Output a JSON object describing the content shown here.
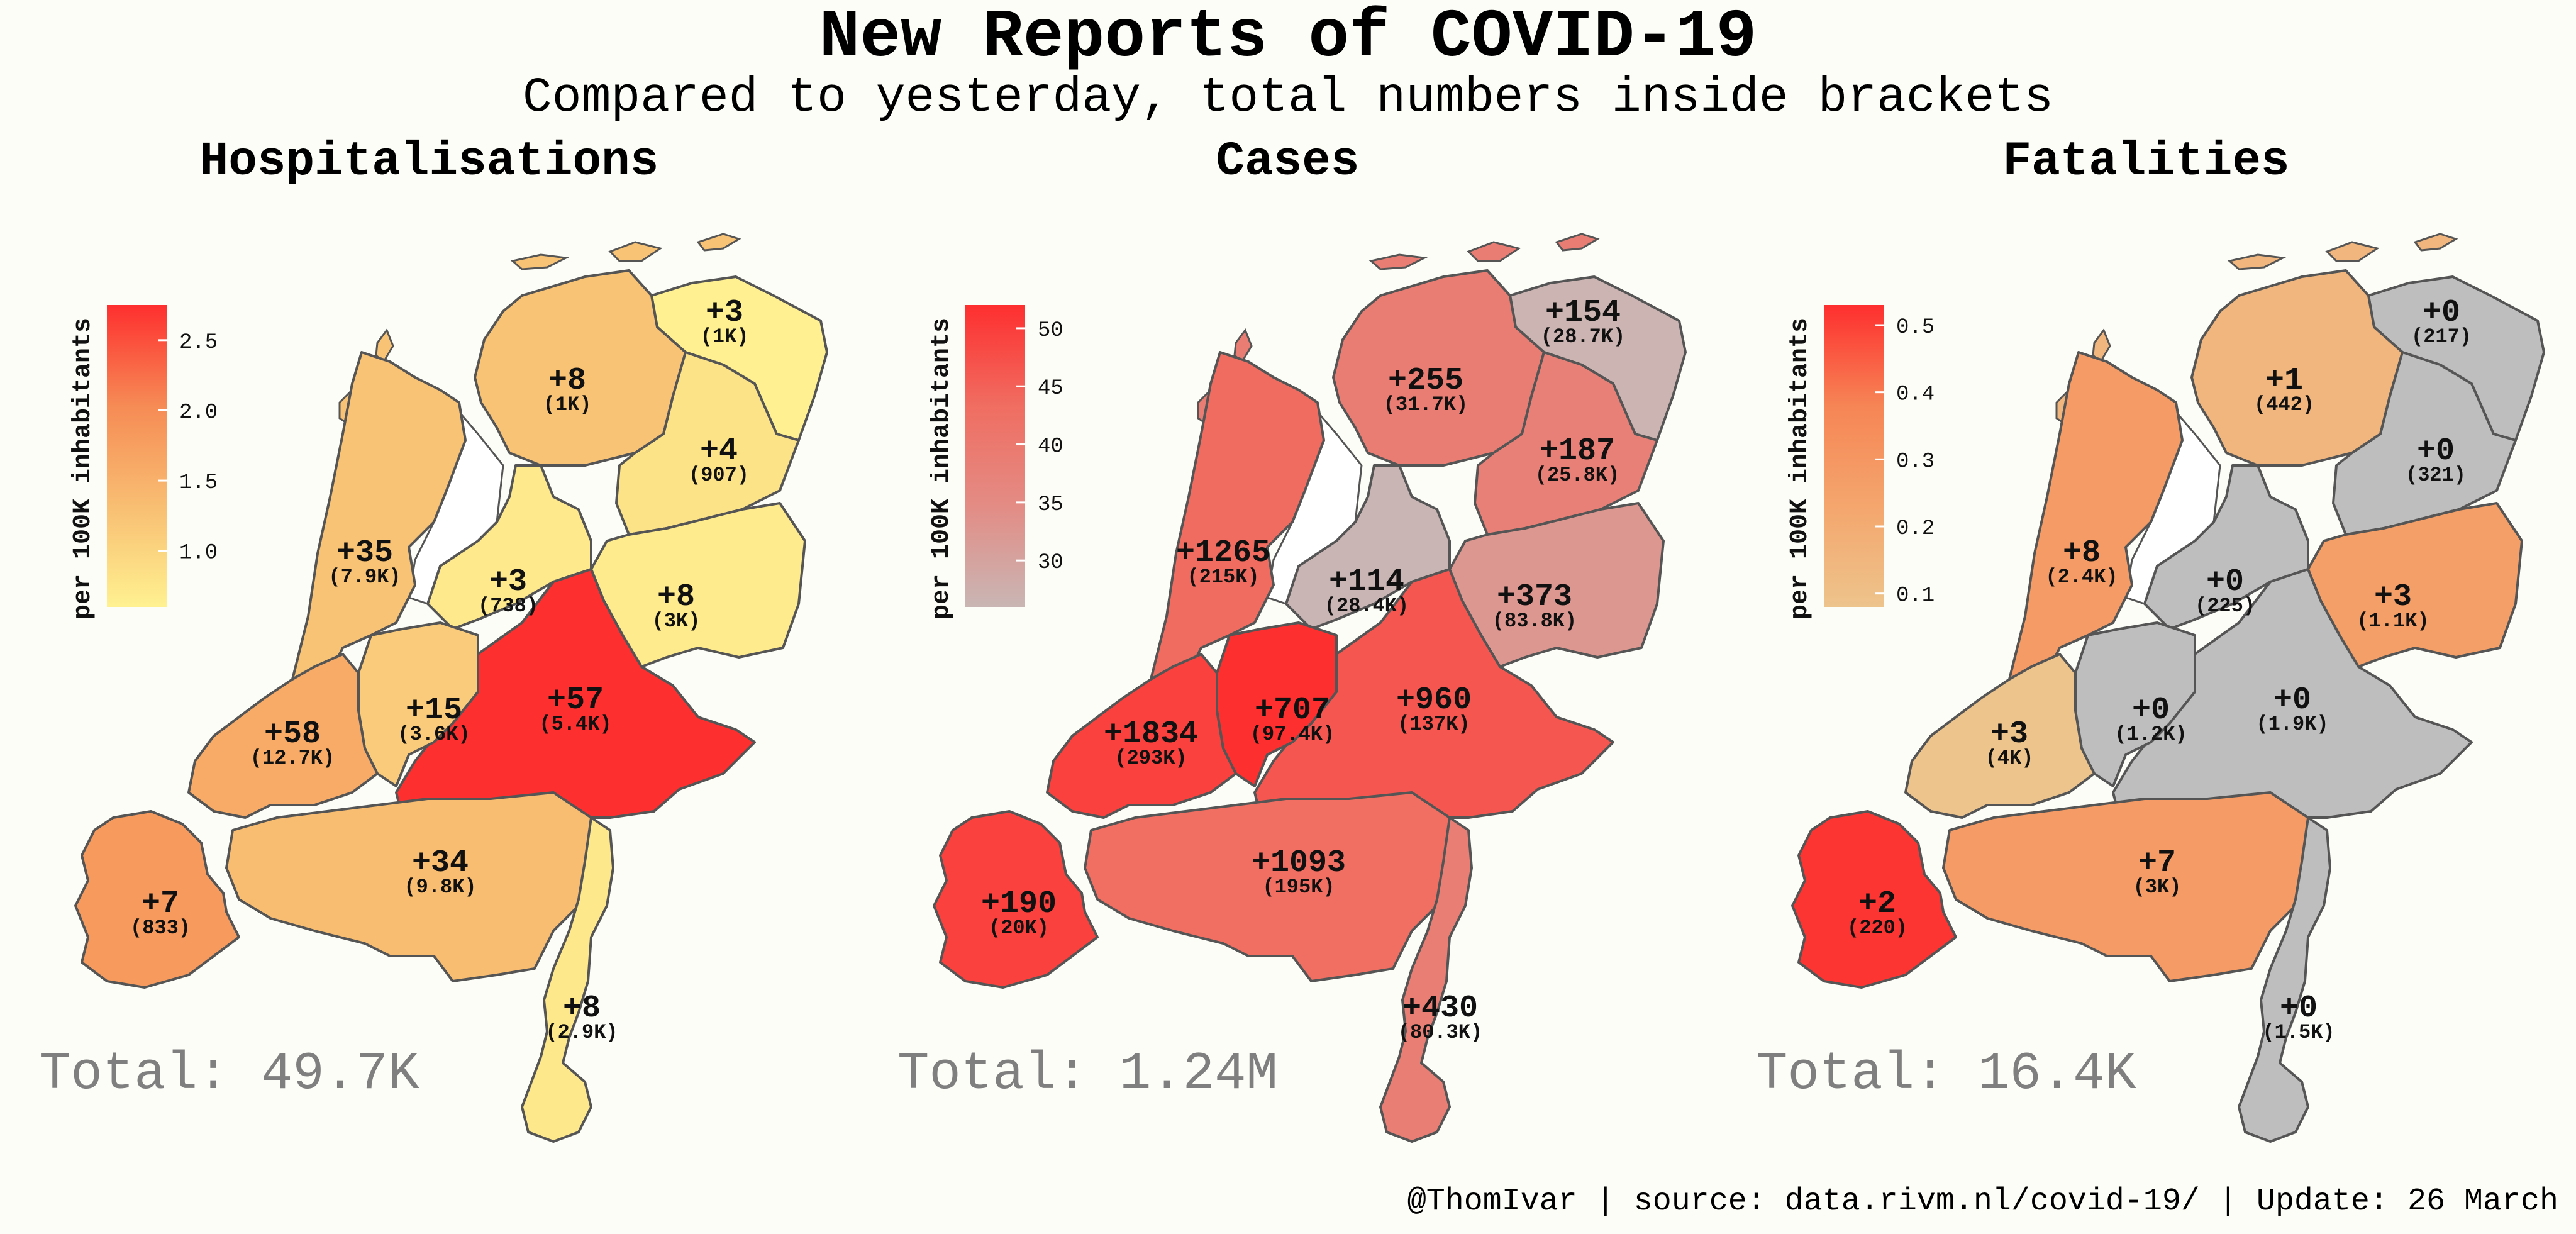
{
  "title": "New Reports of COVID-19",
  "subtitle": "Compared to yesterday, total numbers inside brackets",
  "footer": "@ThomIvar | source: data.rivm.nl/covid-19/ | Update: 26 March",
  "chart_data": [
    {
      "type": "choropleth",
      "title": "Hospitalisations",
      "legend_label": "per 100K inhabitants",
      "legend_ticks": [
        "2.5",
        "2.0",
        "1.5",
        "1.0"
      ],
      "legend_range": [
        0.6,
        2.75
      ],
      "legend_colors": [
        "#fff191",
        "#f8be72",
        "#f68b55",
        "#fe2f2f"
      ],
      "total": "Total: 49.7K",
      "regions": [
        {
          "name": "Groningen",
          "delta": "+3",
          "total": "(1K)",
          "value": 0.51
        },
        {
          "name": "Friesland",
          "delta": "+8",
          "total": "(1K)",
          "value": 1.24
        },
        {
          "name": "Drenthe",
          "delta": "+4",
          "total": "(907)",
          "value": 0.8
        },
        {
          "name": "Noord-Holland",
          "delta": "+35",
          "total": "(7.9K)",
          "value": 1.25
        },
        {
          "name": "Flevoland",
          "delta": "+3",
          "total": "(738)",
          "value": 0.71
        },
        {
          "name": "Overijssel",
          "delta": "+8",
          "total": "(3K)",
          "value": 0.69
        },
        {
          "name": "Gelderland",
          "delta": "+57",
          "total": "(5.4K)",
          "value": 2.75
        },
        {
          "name": "Utrecht",
          "delta": "+15",
          "total": "(3.6K)",
          "value": 1.13
        },
        {
          "name": "Zuid-Holland",
          "delta": "+58",
          "total": "(12.7K)",
          "value": 1.58
        },
        {
          "name": "Zeeland",
          "delta": "+7",
          "total": "(833)",
          "value": 1.82
        },
        {
          "name": "Noord-Brabant",
          "delta": "+34",
          "total": "(9.8K)",
          "value": 1.33
        },
        {
          "name": "Limburg",
          "delta": "+8",
          "total": "(2.9K)",
          "value": 0.72
        }
      ]
    },
    {
      "type": "choropleth",
      "title": "Cases",
      "legend_label": "per 100K inhabitants",
      "legend_ticks": [
        "50",
        "45",
        "40",
        "35",
        "30"
      ],
      "legend_range": [
        26,
        52
      ],
      "legend_colors": [
        "#c9b6b4",
        "#e38c85",
        "#f06d61",
        "#fe2f2f"
      ],
      "total": "Total: 1.24M",
      "regions": [
        {
          "name": "Groningen",
          "delta": "+154",
          "total": "(28.7K)",
          "value": 26.5
        },
        {
          "name": "Friesland",
          "delta": "+255",
          "total": "(31.7K)",
          "value": 39.0
        },
        {
          "name": "Drenthe",
          "delta": "+187",
          "total": "(25.8K)",
          "value": 38.0
        },
        {
          "name": "Noord-Holland",
          "delta": "+1265",
          "total": "(215K)",
          "value": 43.5
        },
        {
          "name": "Flevoland",
          "delta": "+114",
          "total": "(28.4K)",
          "value": 26.0
        },
        {
          "name": "Overijssel",
          "delta": "+373",
          "total": "(83.8K)",
          "value": 32.5
        },
        {
          "name": "Gelderland",
          "delta": "+960",
          "total": "(137K)",
          "value": 46.5
        },
        {
          "name": "Utrecht",
          "delta": "+707",
          "total": "(97.4K)",
          "value": 52.0
        },
        {
          "name": "Zuid-Holland",
          "delta": "+1834",
          "total": "(293K)",
          "value": 49.5
        },
        {
          "name": "Zeeland",
          "delta": "+190",
          "total": "(20K)",
          "value": 49.5
        },
        {
          "name": "Noord-Brabant",
          "delta": "+1093",
          "total": "(195K)",
          "value": 43.0
        },
        {
          "name": "Limburg",
          "delta": "+430",
          "total": "(80.3K)",
          "value": 38.5
        }
      ]
    },
    {
      "type": "choropleth",
      "title": "Fatalities",
      "legend_label": "per 100K inhabitants",
      "legend_ticks": [
        "0.5",
        "0.4",
        "0.3",
        "0.2",
        "0.1"
      ],
      "legend_range": [
        0.08,
        0.53
      ],
      "legend_colors": [
        "#edc48c",
        "#f4a66d",
        "#f68555",
        "#fe2f2f"
      ],
      "zero_color": "#bebebe",
      "total": "Total: 16.4K",
      "regions": [
        {
          "name": "Groningen",
          "delta": "+0",
          "total": "(217)",
          "value": 0
        },
        {
          "name": "Friesland",
          "delta": "+1",
          "total": "(442)",
          "value": 0.15
        },
        {
          "name": "Drenthe",
          "delta": "+0",
          "total": "(321)",
          "value": 0
        },
        {
          "name": "Noord-Holland",
          "delta": "+8",
          "total": "(2.4K)",
          "value": 0.28
        },
        {
          "name": "Flevoland",
          "delta": "+0",
          "total": "(225)",
          "value": 0
        },
        {
          "name": "Overijssel",
          "delta": "+3",
          "total": "(1.1K)",
          "value": 0.26
        },
        {
          "name": "Gelderland",
          "delta": "+0",
          "total": "(1.9K)",
          "value": 0
        },
        {
          "name": "Utrecht",
          "delta": "+0",
          "total": "(1.2K)",
          "value": 0
        },
        {
          "name": "Zuid-Holland",
          "delta": "+3",
          "total": "(4K)",
          "value": 0.08
        },
        {
          "name": "Zeeland",
          "delta": "+2",
          "total": "(220)",
          "value": 0.52
        },
        {
          "name": "Noord-Brabant",
          "delta": "+7",
          "total": "(3K)",
          "value": 0.28
        },
        {
          "name": "Limburg",
          "delta": "+0",
          "total": "(1.5K)",
          "value": 0
        }
      ]
    }
  ]
}
